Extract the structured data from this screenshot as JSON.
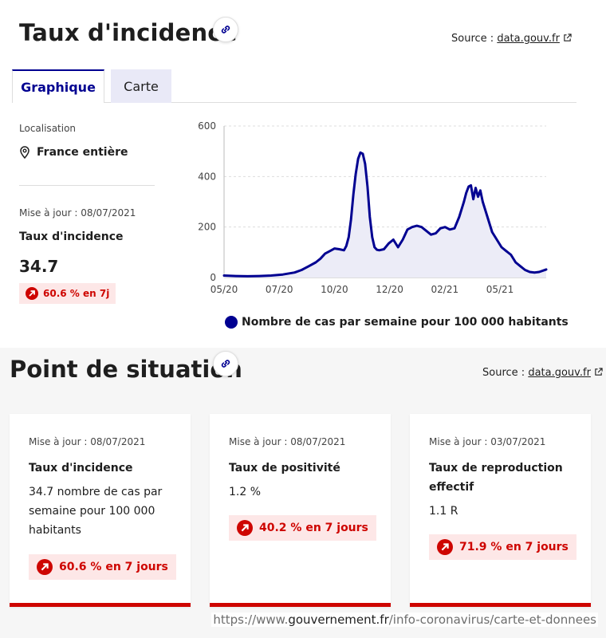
{
  "incidence_section": {
    "title": "Taux d'incidence",
    "source_prefix": "Source :",
    "source_link": "data.gouv.fr",
    "tabs": [
      {
        "label": "Graphique",
        "active": true
      },
      {
        "label": "Carte",
        "active": false
      }
    ],
    "location_label": "Localisation",
    "location_value": "France entière",
    "updated": "Mise à jour : 08/07/2021",
    "metric_title": "Taux d'incidence",
    "metric_value": "34.7",
    "trend": "60.6 % en 7j"
  },
  "chart_data": {
    "type": "area",
    "title": "",
    "xlabel": "",
    "ylabel": "",
    "ylim": [
      0,
      600
    ],
    "yticks": [
      "0",
      "200",
      "400",
      "600"
    ],
    "xticks": [
      "05/20",
      "07/20",
      "10/20",
      "12/20",
      "02/21",
      "05/21"
    ],
    "series": [
      {
        "name": "Nombre de cas par semaine pour 100 000 habitants",
        "x": [
          0,
          0.5,
          1,
          1.5,
          2,
          2.5,
          3,
          3.3,
          3.6,
          3.9,
          4.1,
          4.3,
          4.5,
          4.7,
          4.9,
          5.1,
          5.2,
          5.3,
          5.4,
          5.5,
          5.6,
          5.7,
          5.8,
          5.9,
          6.0,
          6.1,
          6.2,
          6.3,
          6.4,
          6.5,
          6.6,
          6.8,
          7.0,
          7.2,
          7.4,
          7.6,
          7.8,
          8.0,
          8.2,
          8.4,
          8.6,
          8.8,
          9.0,
          9.2,
          9.4,
          9.6,
          9.8,
          10.0,
          10.2,
          10.3,
          10.4,
          10.5,
          10.6,
          10.7,
          10.8,
          10.9,
          11.0,
          11.2,
          11.4,
          11.6,
          11.8,
          12.0,
          12.2,
          12.4,
          12.6,
          12.8,
          13.0,
          13.2,
          13.4,
          13.7
        ],
        "y": [
          8,
          6,
          5,
          6,
          8,
          12,
          20,
          30,
          45,
          60,
          75,
          95,
          105,
          115,
          112,
          108,
          125,
          160,
          230,
          330,
          410,
          470,
          495,
          490,
          450,
          360,
          240,
          160,
          120,
          110,
          108,
          112,
          135,
          150,
          120,
          150,
          190,
          200,
          205,
          200,
          185,
          170,
          175,
          195,
          200,
          190,
          195,
          240,
          300,
          335,
          360,
          365,
          310,
          355,
          320,
          345,
          300,
          240,
          180,
          150,
          120,
          105,
          90,
          60,
          45,
          30,
          22,
          20,
          22,
          32
        ]
      }
    ]
  },
  "situation_section": {
    "title": "Point de situation",
    "source_prefix": "Source :",
    "source_link": "data.gouv.fr",
    "cards": [
      {
        "updated": "Mise à jour : 08/07/2021",
        "title": "Taux d'incidence",
        "value": "34.7 nombre de cas par semaine pour 100 000 habitants",
        "trend": "60.6 % en 7 jours"
      },
      {
        "updated": "Mise à jour : 08/07/2021",
        "title": "Taux de positivité",
        "value": "1.2 %",
        "trend": "40.2 % en 7 jours"
      },
      {
        "updated": "Mise à jour : 03/07/2021",
        "title": "Taux de reproduction effectif",
        "value": "1.1 R",
        "trend": "71.9 % en 7 jours"
      }
    ]
  },
  "url": {
    "prefix": "https://www.",
    "domain": "gouvernement.fr",
    "path": "/info-coronavirus/carte-et-donnees"
  },
  "colors": {
    "primary": "#000091",
    "alert": "#ce0500",
    "alert_bg": "#fde7e7"
  }
}
